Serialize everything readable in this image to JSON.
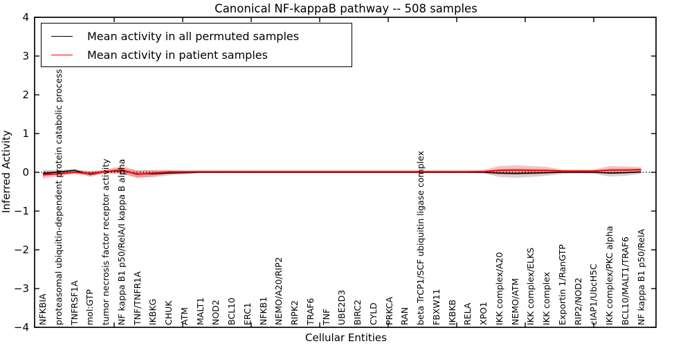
{
  "title": "Canonical NF-kappaB pathway -- 508 samples",
  "legend": {
    "entries": [
      {
        "label": "Mean activity in all permuted samples",
        "color": "#000000"
      },
      {
        "label": "Mean activity in patient samples",
        "color": "#ff0000"
      }
    ]
  },
  "chart_data": {
    "type": "line",
    "title": "Canonical NF-kappaB pathway -- 508 samples",
    "xlabel": "Cellular Entities",
    "ylabel": "Inferred Activity",
    "ylim": [
      -4,
      4
    ],
    "yticks": [
      4,
      3,
      2,
      1,
      0,
      -1,
      -2,
      -3,
      -4
    ],
    "grid": false,
    "zero_line_style": "dotted",
    "legend_position": "upper left",
    "categories": [
      "NFKBIA",
      "proteasomal ubiquitin-dependent protein catabolic process",
      "TNFRSF1A",
      "mol:GTP",
      "tumor necrosis factor receptor activity",
      "NF kappa B1 p50/RelA/I kappa B alpha",
      "TNF/TNFR1A",
      "IKBKG",
      "CHUK",
      "ATM",
      "MALT1",
      "NOD2",
      "BCL10",
      "ERC1",
      "NFKB1",
      "NEMO/A20/RIP2",
      "RIPK2",
      "TRAF6",
      "TNF",
      "UBE2D3",
      "BIRC2",
      "CYLD",
      "PRKCA",
      "RAN",
      "beta TrCP1/SCF ubiquitin ligase complex",
      "FBXW11",
      "IKBKB",
      "RELA",
      "XPO1",
      "IKK complex/A20",
      "NEMO/ATM",
      "IKK complex/ELKS",
      "IKK complex",
      "Exportin 1/RanGTP",
      "RIP2/NOD2",
      "cIAP1/UbcH5C",
      "IKK complex/PKC alpha",
      "BCL10/MALT1/TRAF6",
      "NF kappa B1 p50/RelA"
    ],
    "series": [
      {
        "name": "Mean activity in all permuted samples",
        "color": "#000000",
        "line_width": 1.6,
        "band_color": "rgba(130,130,130,0.35)",
        "values": [
          -0.03,
          0.01,
          0.05,
          -0.05,
          0.02,
          0.04,
          -0.04,
          -0.04,
          -0.02,
          -0.01,
          0,
          0,
          0,
          0,
          0,
          0,
          0,
          0,
          0,
          0,
          0,
          0,
          0,
          0,
          0,
          0,
          0,
          0,
          0,
          -0.02,
          -0.03,
          -0.02,
          -0.01,
          0,
          0,
          0,
          -0.02,
          -0.01,
          0.01
        ],
        "band_halfwidth": [
          0.09,
          0.05,
          0.04,
          0.07,
          0.04,
          0.06,
          0.09,
          0.09,
          0.06,
          0.04,
          0.025,
          0.025,
          0.025,
          0.025,
          0.025,
          0.025,
          0.025,
          0.025,
          0.025,
          0.025,
          0.025,
          0.025,
          0.025,
          0.025,
          0.025,
          0.025,
          0.025,
          0.025,
          0.03,
          0.1,
          0.11,
          0.1,
          0.08,
          0.04,
          0.03,
          0.04,
          0.09,
          0.08,
          0.05
        ]
      },
      {
        "name": "Mean activity in patient samples",
        "color": "#ff0000",
        "line_width": 2.1,
        "band_color": "rgba(255,40,40,0.30)",
        "values": [
          -0.06,
          -0.04,
          0,
          -0.03,
          0.02,
          0.06,
          -0.05,
          -0.02,
          0.01,
          0.01,
          0.015,
          0.015,
          0.015,
          0.015,
          0.015,
          0.015,
          0.015,
          0.015,
          0.015,
          0.015,
          0.015,
          0.015,
          0.015,
          0.015,
          0.015,
          0.015,
          0.015,
          0.015,
          0.02,
          0.05,
          0.06,
          0.05,
          0.05,
          0.03,
          0.03,
          0.03,
          0.06,
          0.06,
          0.07
        ],
        "band_halfwidth": [
          0.1,
          0.06,
          0.04,
          0.06,
          0.05,
          0.1,
          0.1,
          0.08,
          0.05,
          0.04,
          0.03,
          0.03,
          0.03,
          0.03,
          0.03,
          0.03,
          0.03,
          0.03,
          0.03,
          0.03,
          0.03,
          0.03,
          0.03,
          0.03,
          0.03,
          0.03,
          0.03,
          0.03,
          0.04,
          0.11,
          0.12,
          0.11,
          0.09,
          0.04,
          0.04,
          0.04,
          0.1,
          0.09,
          0.06
        ]
      }
    ]
  }
}
